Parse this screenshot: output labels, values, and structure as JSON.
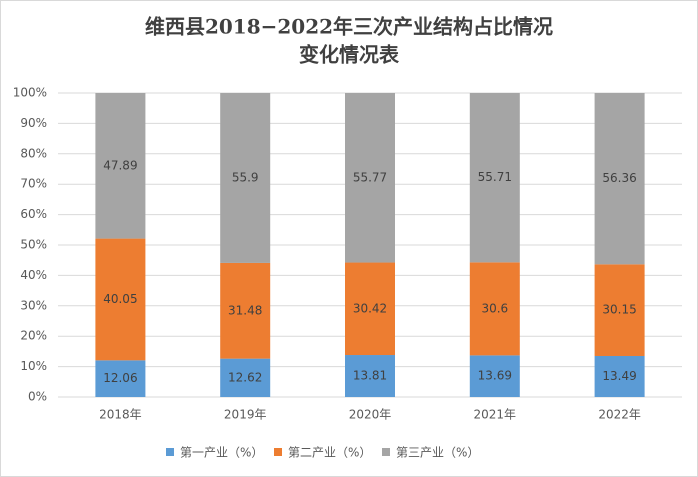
{
  "chart_data": {
    "type": "stacked_bar",
    "title": [
      "维西县2018−2022年三次产业结构占比情况",
      "变化情况表"
    ],
    "categories": [
      "2018年",
      "2019年",
      "2020年",
      "2021年",
      "2022年"
    ],
    "series": [
      {
        "name": "第一产业（%）",
        "color": "#5b9bd5",
        "values": [
          12.06,
          12.62,
          13.81,
          13.69,
          13.49
        ]
      },
      {
        "name": "第二产业（%）",
        "color": "#ed7d31",
        "values": [
          40.05,
          31.48,
          30.42,
          30.6,
          30.15
        ]
      },
      {
        "name": "第三产业（%）",
        "color": "#a5a5a5",
        "values": [
          47.89,
          55.9,
          55.77,
          55.71,
          56.36
        ]
      }
    ],
    "ylim": [
      0,
      100
    ],
    "yticks": [
      {
        "value": 0,
        "label": "0%"
      },
      {
        "value": 10,
        "label": "10%"
      },
      {
        "value": 20,
        "label": "20%"
      },
      {
        "value": 30,
        "label": "30%"
      },
      {
        "value": 40,
        "label": "40%"
      },
      {
        "value": 50,
        "label": "50%"
      },
      {
        "value": 60,
        "label": "60%"
      },
      {
        "value": 70,
        "label": "70%"
      },
      {
        "value": 80,
        "label": "80%"
      },
      {
        "value": 90,
        "label": "90%"
      },
      {
        "value": 100,
        "label": "100%"
      }
    ],
    "grid": true,
    "legend": "bottom"
  }
}
